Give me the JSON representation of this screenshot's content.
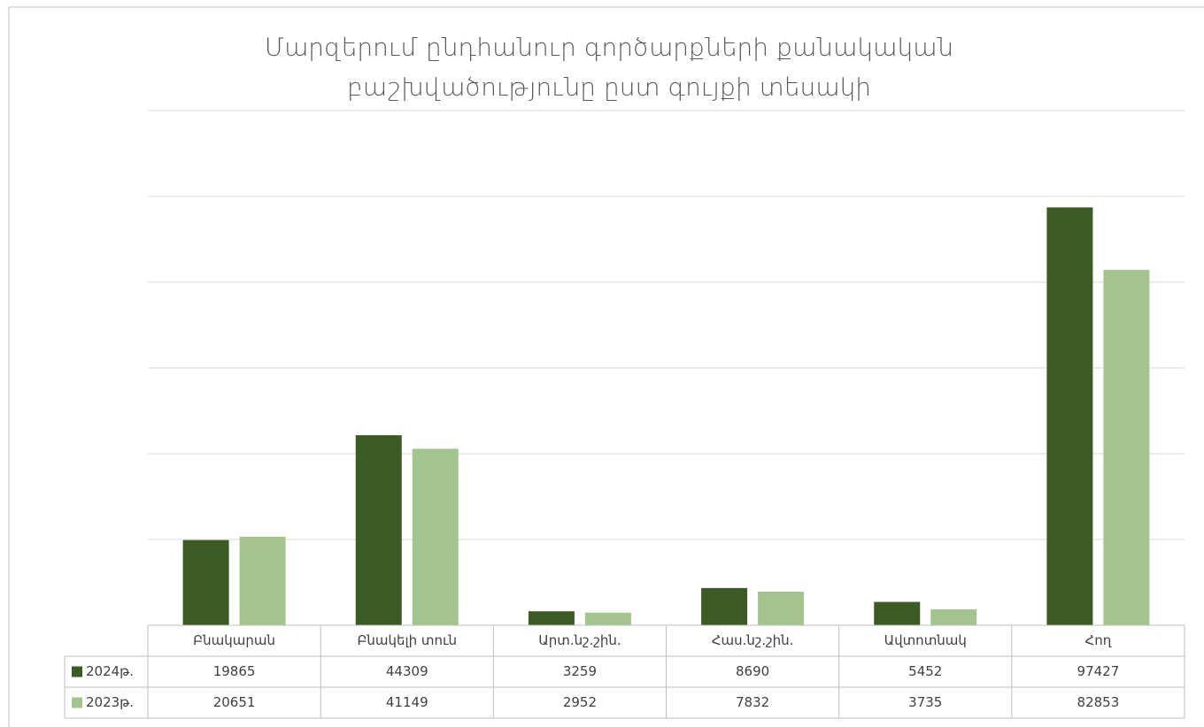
{
  "chart_data": {
    "type": "bar",
    "title": [
      "Մարզերում ընդհանուր գործարքների քանակական",
      "բաշխվածությունը ըստ գույքի տեսակի"
    ],
    "categories": [
      "Բնակարան",
      "Բնակելի տուն",
      "Արտ.նշ.շին.",
      "Հաս.նշ.շին.",
      "Ավտոտնակ",
      "Հող"
    ],
    "series": [
      {
        "name": "2024թ.",
        "color": "#3b5a24",
        "values": [
          19865,
          44309,
          3259,
          8690,
          5452,
          97427
        ]
      },
      {
        "name": "2023թ.",
        "color": "#a3c48f",
        "values": [
          20651,
          41149,
          2952,
          7832,
          3735,
          82853
        ]
      }
    ],
    "ylim": [
      0,
      120000
    ],
    "yticks": [
      0,
      20000,
      40000,
      60000,
      80000,
      100000,
      120000
    ],
    "grid": true
  }
}
